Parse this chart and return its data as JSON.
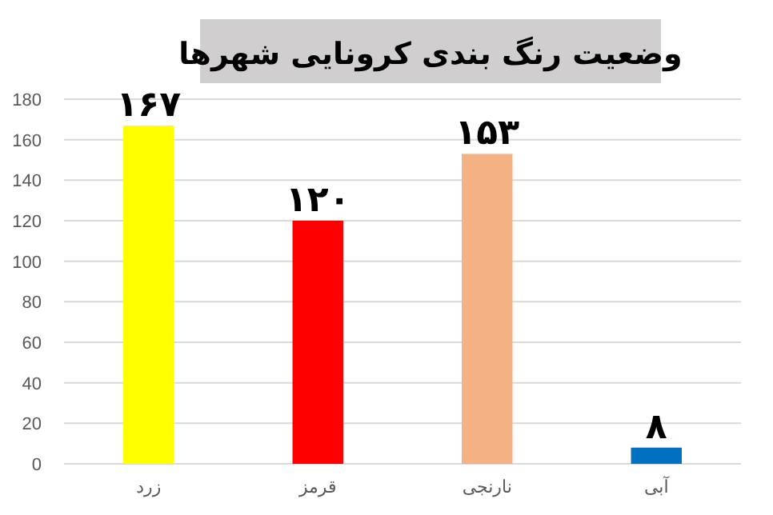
{
  "chart_data": {
    "type": "bar",
    "title": "وضعیت رنگ بندی کرونایی شهرها",
    "categories": [
      "زرد",
      "قرمز",
      "نارنجی",
      "آبی"
    ],
    "values": [
      167,
      120,
      153,
      8
    ],
    "colors": [
      "#ffff00",
      "#ff0000",
      "#f4b183",
      "#0070c0"
    ],
    "value_labels": [
      "۱۶۷",
      "۱۲۰",
      "۱۵۳",
      "۸"
    ],
    "ylim": [
      0,
      180
    ],
    "yticks": [
      0,
      20,
      40,
      60,
      80,
      100,
      120,
      140,
      160,
      180
    ],
    "grid": "y"
  }
}
